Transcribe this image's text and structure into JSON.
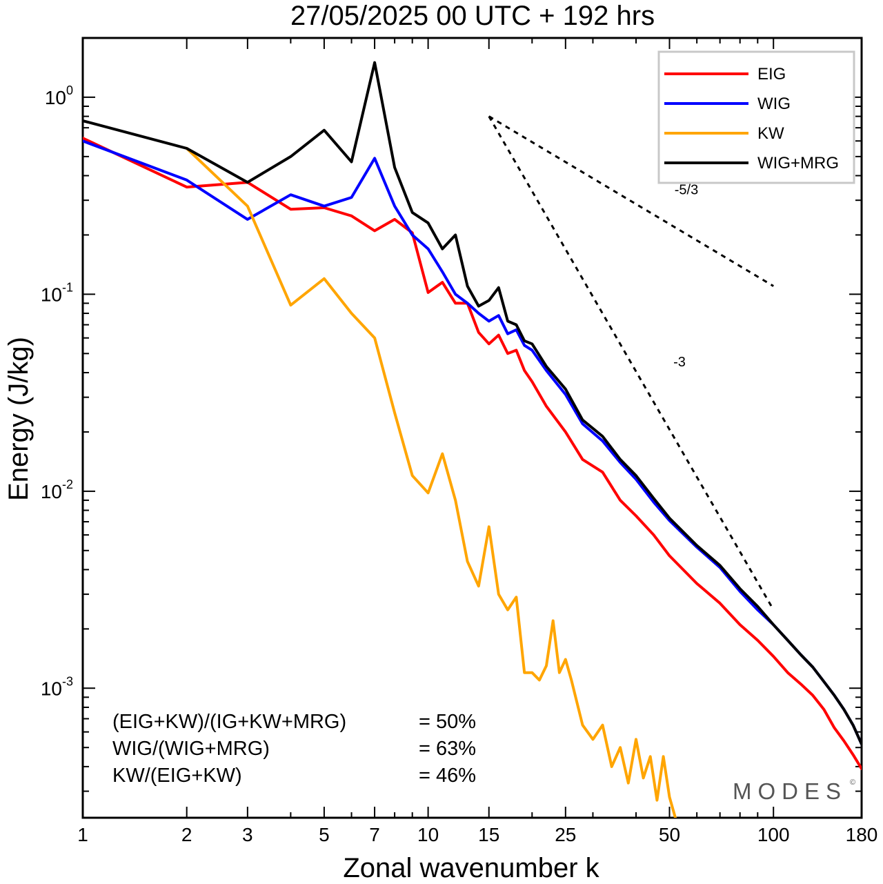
{
  "chart_data": {
    "type": "line",
    "title": "27/05/2025  00 UTC  + 192 hrs",
    "xlabel": "Zonal wavenumber k",
    "ylabel": "Energy (J/kg)",
    "xscale": "log",
    "yscale": "log",
    "xlim": [
      1,
      180
    ],
    "ylim": [
      0.00022,
      2.0
    ],
    "xticks": [
      1,
      2,
      3,
      5,
      7,
      10,
      15,
      25,
      50,
      100,
      180
    ],
    "xtick_labels": [
      "1",
      "2",
      "3",
      "5",
      "7",
      "10",
      "15",
      "25",
      "50",
      "100",
      "180"
    ],
    "yticks": [
      {
        "value": 1,
        "base": "10",
        "exp": "0"
      },
      {
        "value": 0.1,
        "base": "10",
        "exp": "-1"
      },
      {
        "value": 0.01,
        "base": "10",
        "exp": "-2"
      },
      {
        "value": 0.001,
        "base": "10",
        "exp": "-3"
      }
    ],
    "legend_position": "top-right",
    "series": [
      {
        "name": "EIG",
        "color": "#ff0000",
        "x": [
          1,
          2,
          3,
          4,
          5,
          6,
          7,
          8,
          9,
          10,
          11,
          12,
          13,
          14,
          15,
          16,
          17,
          18,
          19,
          20,
          22,
          25,
          28,
          32,
          36,
          40,
          45,
          50,
          60,
          70,
          80,
          90,
          100,
          110,
          120,
          130,
          140,
          150,
          160,
          170,
          180
        ],
        "y": [
          0.62,
          0.35,
          0.37,
          0.27,
          0.275,
          0.25,
          0.21,
          0.24,
          0.205,
          0.102,
          0.115,
          0.09,
          0.09,
          0.064,
          0.056,
          0.062,
          0.05,
          0.052,
          0.041,
          0.036,
          0.027,
          0.02,
          0.0145,
          0.0125,
          0.009,
          0.0075,
          0.006,
          0.0047,
          0.0034,
          0.0027,
          0.0021,
          0.00175,
          0.00145,
          0.0012,
          0.00105,
          0.00092,
          0.00078,
          0.00063,
          0.00054,
          0.00046,
          0.00039
        ]
      },
      {
        "name": "WIG",
        "color": "#0000ff",
        "x": [
          1,
          2,
          3,
          4,
          5,
          6,
          7,
          8,
          9,
          10,
          11,
          12,
          13,
          14,
          15,
          16,
          17,
          18,
          19,
          20,
          22,
          25,
          28,
          32,
          36,
          40,
          45,
          50,
          60,
          70,
          80,
          90,
          100,
          110,
          120,
          130,
          140,
          150,
          160,
          170,
          180
        ],
        "y": [
          0.6,
          0.38,
          0.24,
          0.32,
          0.28,
          0.31,
          0.49,
          0.28,
          0.2,
          0.17,
          0.13,
          0.1,
          0.09,
          0.08,
          0.073,
          0.078,
          0.063,
          0.066,
          0.055,
          0.052,
          0.041,
          0.031,
          0.022,
          0.018,
          0.014,
          0.0115,
          0.0088,
          0.0071,
          0.0052,
          0.0041,
          0.0031,
          0.0025,
          0.0021,
          0.00175,
          0.00148,
          0.00128,
          0.00108,
          0.00092,
          0.00078,
          0.00065,
          0.00052
        ]
      },
      {
        "name": "KW",
        "color": "#ffa500",
        "x": [
          2,
          3,
          4,
          5,
          6,
          7,
          8,
          9,
          10,
          11,
          12,
          13,
          14,
          15,
          16,
          17,
          18,
          19,
          20,
          21,
          22,
          23,
          24,
          25,
          26,
          28,
          30,
          32,
          34,
          36,
          38,
          40,
          42,
          44,
          46,
          48,
          50,
          52
        ],
        "y": [
          0.55,
          0.28,
          0.088,
          0.12,
          0.08,
          0.06,
          0.025,
          0.012,
          0.0098,
          0.0155,
          0.009,
          0.0044,
          0.0033,
          0.0066,
          0.003,
          0.0025,
          0.0029,
          0.0012,
          0.0012,
          0.0011,
          0.0013,
          0.0022,
          0.0012,
          0.0014,
          0.0011,
          0.00065,
          0.00055,
          0.00065,
          0.0004,
          0.0005,
          0.00033,
          0.00055,
          0.00035,
          0.00045,
          0.00027,
          0.00045,
          0.00028,
          0.00022
        ]
      },
      {
        "name": "WIG+MRG",
        "color": "#000000",
        "x": [
          1,
          2,
          3,
          4,
          5,
          6,
          7,
          8,
          9,
          10,
          11,
          12,
          13,
          14,
          15,
          16,
          17,
          18,
          19,
          20,
          22,
          25,
          28,
          32,
          36,
          40,
          45,
          50,
          60,
          70,
          80,
          90,
          100,
          110,
          120,
          130,
          140,
          150,
          160,
          170,
          180
        ],
        "y": [
          0.76,
          0.55,
          0.37,
          0.5,
          0.68,
          0.47,
          1.5,
          0.44,
          0.26,
          0.23,
          0.17,
          0.2,
          0.11,
          0.087,
          0.093,
          0.108,
          0.073,
          0.07,
          0.058,
          0.056,
          0.043,
          0.033,
          0.023,
          0.019,
          0.0145,
          0.012,
          0.0092,
          0.0073,
          0.0053,
          0.0042,
          0.0032,
          0.0026,
          0.0021,
          0.00175,
          0.00148,
          0.00128,
          0.00108,
          0.00092,
          0.00078,
          0.00065,
          0.00052
        ]
      }
    ],
    "reference_lines": [
      {
        "label": "-5/3",
        "x": [
          15,
          100
        ],
        "y": [
          0.8,
          0.11
        ]
      },
      {
        "label": "-3",
        "x": [
          15,
          100
        ],
        "y": [
          0.8,
          0.0025
        ]
      }
    ],
    "annotations": [
      {
        "label": "(EIG+KW)/(IG+KW+MRG)",
        "value": "= 50%"
      },
      {
        "label": "WIG/(WIG+MRG)",
        "value": "= 63%"
      },
      {
        "label": "KW/(EIG+KW)",
        "value": "= 46%"
      }
    ],
    "watermark": "MODES",
    "watermark_mark": "©"
  }
}
